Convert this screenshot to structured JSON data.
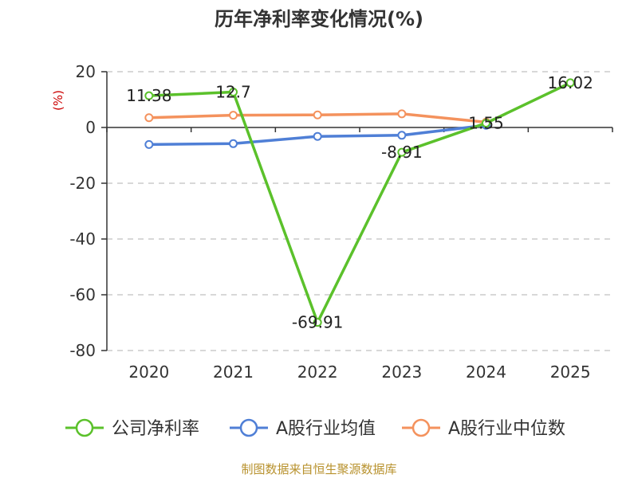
{
  "chart_data": {
    "type": "line",
    "title": "历年净利率变化情况(%)",
    "ylabel": "(%)",
    "ylim": [
      -80,
      20
    ],
    "yticks": [
      20,
      0,
      -20,
      -40,
      -60,
      -80
    ],
    "categories": [
      "2020",
      "2021",
      "2022",
      "2023",
      "2024",
      "2025"
    ],
    "grid": true,
    "legend_position": "bottom",
    "series": [
      {
        "name": "公司净利率",
        "color": "#5bc12b",
        "values": [
          11.38,
          12.7,
          -69.91,
          -8.91,
          1.55,
          16.02
        ],
        "labels": [
          "11.38",
          "12.7",
          "-69.91",
          "-8.91",
          "1.55",
          "16.02"
        ]
      },
      {
        "name": "A股行业均值",
        "color": "#4f7fd6",
        "values": [
          -6.1,
          -5.8,
          -3.2,
          -2.8,
          0.8,
          null
        ]
      },
      {
        "name": "A股行业中位数",
        "color": "#f4925d",
        "values": [
          3.5,
          4.4,
          4.5,
          4.9,
          1.9,
          null
        ]
      }
    ]
  },
  "source": "制图数据来自恒生聚源数据库"
}
